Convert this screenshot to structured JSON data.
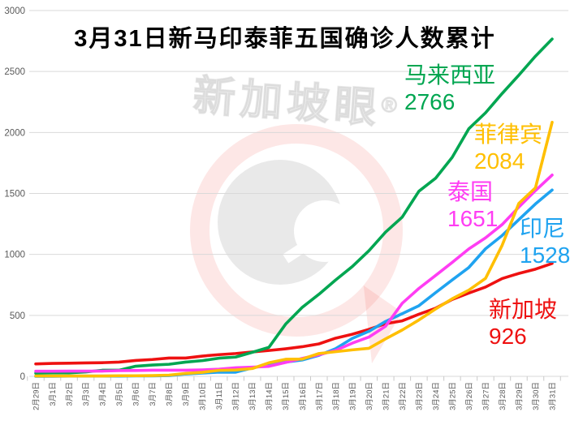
{
  "watermark": {
    "text": "新加坡眼",
    "registered": "®"
  },
  "axis": {
    "tick_color": "#c9c9c9",
    "grid_color": "#d9d9d9",
    "label_color": "#595959"
  },
  "chart_data": {
    "type": "line",
    "title": "3月31日新马印泰菲五国确诊人数累计",
    "xlabel": "",
    "ylabel": "",
    "ylim": [
      0,
      3000
    ],
    "yticks": [
      0,
      500,
      1000,
      1500,
      2000,
      2500,
      3000
    ],
    "grid": "horizontal",
    "legend_position": "inline-right",
    "x": [
      "2月29日",
      "3月1日",
      "3月2日",
      "3月3日",
      "3月4日",
      "3月5日",
      "3月6日",
      "3月7日",
      "3月8日",
      "3月9日",
      "3月10日",
      "3月11日",
      "3月12日",
      "3月13日",
      "3月14日",
      "3月15日",
      "3月16日",
      "3月17日",
      "3月18日",
      "3月19日",
      "3月20日",
      "3月21日",
      "3月22日",
      "3月23日",
      "3月24日",
      "3月25日",
      "3月26日",
      "3月27日",
      "3月28日",
      "3月29日",
      "3月30日",
      "3月31日"
    ],
    "series": [
      {
        "key": "malaysia",
        "name": "马来西亚",
        "final": 2766,
        "color": "#00a651",
        "z": 2,
        "values": [
          25,
          29,
          29,
          36,
          50,
          50,
          83,
          93,
          99,
          117,
          129,
          149,
          158,
          197,
          238,
          428,
          566,
          673,
          790,
          900,
          1030,
          1183,
          1306,
          1518,
          1624,
          1796,
          2031,
          2161,
          2320,
          2470,
          2626,
          2766
        ]
      },
      {
        "key": "philippines",
        "name": "菲律宾",
        "final": 2084,
        "color": "#ffbf00",
        "z": 5,
        "values": [
          3,
          3,
          3,
          3,
          3,
          5,
          5,
          6,
          10,
          24,
          33,
          49,
          52,
          64,
          111,
          140,
          142,
          187,
          202,
          217,
          230,
          307,
          380,
          462,
          552,
          636,
          707,
          803,
          1075,
          1418,
          1546,
          2084
        ]
      },
      {
        "key": "thailand",
        "name": "泰国",
        "final": 1651,
        "color": "#ff3df3",
        "z": 4,
        "values": [
          42,
          42,
          43,
          43,
          43,
          47,
          48,
          50,
          50,
          50,
          53,
          59,
          70,
          75,
          82,
          114,
          147,
          177,
          212,
          272,
          322,
          411,
          599,
          721,
          827,
          934,
          1045,
          1136,
          1245,
          1388,
          1524,
          1651
        ]
      },
      {
        "key": "indonesia",
        "name": "印尼",
        "final": 1528,
        "color": "#1fa3f0",
        "z": 3,
        "values": [
          0,
          0,
          2,
          2,
          2,
          2,
          4,
          4,
          6,
          19,
          27,
          34,
          34,
          69,
          96,
          117,
          134,
          172,
          227,
          311,
          369,
          450,
          514,
          579,
          686,
          790,
          893,
          1046,
          1155,
          1285,
          1414,
          1528
        ]
      },
      {
        "key": "singapore",
        "name": "新加坡",
        "final": 926,
        "color": "#ee1111",
        "z": 1,
        "values": [
          102,
          106,
          108,
          110,
          112,
          117,
          130,
          138,
          150,
          150,
          166,
          178,
          187,
          200,
          212,
          226,
          243,
          266,
          313,
          345,
          385,
          432,
          455,
          509,
          558,
          631,
          683,
          732,
          802,
          844,
          879,
          926
        ]
      }
    ]
  }
}
